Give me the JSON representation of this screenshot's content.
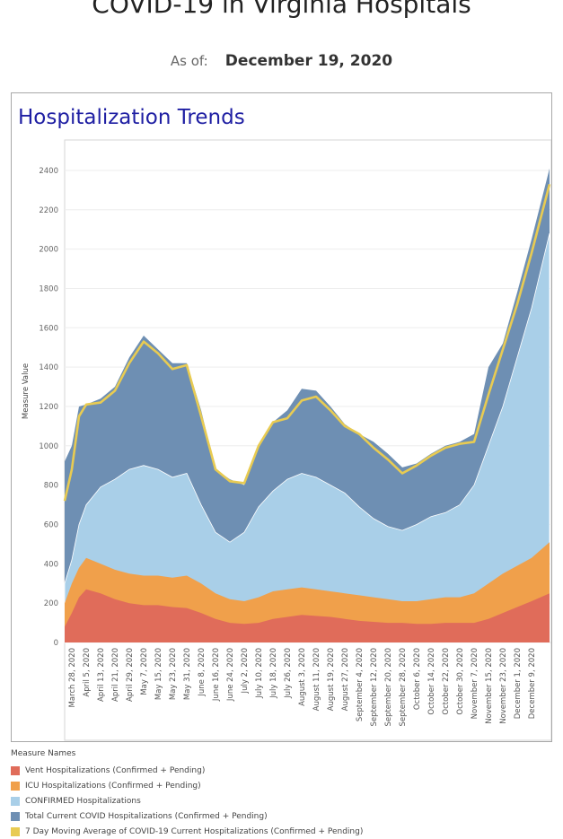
{
  "header": {
    "title": "COVID-19 in Virginia Hospitals",
    "as_of_label": "As of:",
    "as_of_date": "December 19, 2020"
  },
  "panel": {
    "title": "Hospitalization Trends"
  },
  "legend": {
    "title": "Measure Names",
    "items": [
      {
        "label": "Vent Hospitalizations (Confirmed + Pending)",
        "color": "#e06c5a"
      },
      {
        "label": "ICU Hospitalizations (Confirmed + Pending)",
        "color": "#f0a04b"
      },
      {
        "label": "CONFIRMED Hospitalizations",
        "color": "#a9cfe8"
      },
      {
        "label": "Total Current COVID Hospitalizations (Confirmed + Pending)",
        "color": "#6e8fb3"
      },
      {
        "label": "7 Day Moving Average of COVID-19 Current Hospitalizations (Confirmed + Pending)",
        "color": "#e8cb52"
      }
    ]
  },
  "chart_data": {
    "type": "area",
    "ylabel": "Measure Value",
    "ylim": [
      0,
      2500
    ],
    "yticks": [
      0,
      200,
      400,
      600,
      800,
      1000,
      1200,
      1400,
      1600,
      1800,
      2000,
      2200,
      2400
    ],
    "x_start": "2020-03-24",
    "x_end": "2020-12-19",
    "xtick_labels": [
      "March 28, 2020",
      "April 5, 2020",
      "April 13, 2020",
      "April 21, 2020",
      "April 29, 2020",
      "May 7, 2020",
      "May 15, 2020",
      "May 23, 2020",
      "May 31, 2020",
      "June 8, 2020",
      "June 16, 2020",
      "June 24, 2020",
      "July 2, 2020",
      "July 10, 2020",
      "July 18, 2020",
      "July 26, 2020",
      "August 3, 2020",
      "August 11, 2020",
      "August 19, 2020",
      "August 27, 2020",
      "September 4, 2020",
      "September 12, 2020",
      "September 20, 2020",
      "September 28, 2020",
      "October 6, 2020",
      "October 14, 2020",
      "October 22, 2020",
      "October 30, 2020",
      "November 7, 2020",
      "November 15, 2020",
      "November 23, 2020",
      "December 1, 2020",
      "December 9, 2020"
    ],
    "grid": true,
    "series": [
      {
        "name": "Total Current COVID Hospitalizations (Confirmed + Pending)",
        "color": "#6e8fb3",
        "points": [
          [
            "2020-03-24",
            920
          ],
          [
            "2020-03-28",
            1000
          ],
          [
            "2020-04-01",
            1200
          ],
          [
            "2020-04-05",
            1210
          ],
          [
            "2020-04-13",
            1240
          ],
          [
            "2020-04-21",
            1300
          ],
          [
            "2020-04-29",
            1450
          ],
          [
            "2020-05-07",
            1560
          ],
          [
            "2020-05-15",
            1490
          ],
          [
            "2020-05-23",
            1420
          ],
          [
            "2020-05-31",
            1420
          ],
          [
            "2020-06-08",
            1180
          ],
          [
            "2020-06-16",
            880
          ],
          [
            "2020-06-24",
            830
          ],
          [
            "2020-07-02",
            800
          ],
          [
            "2020-07-10",
            1000
          ],
          [
            "2020-07-18",
            1120
          ],
          [
            "2020-07-26",
            1180
          ],
          [
            "2020-08-03",
            1290
          ],
          [
            "2020-08-11",
            1280
          ],
          [
            "2020-08-19",
            1200
          ],
          [
            "2020-08-27",
            1110
          ],
          [
            "2020-09-04",
            1060
          ],
          [
            "2020-09-12",
            1020
          ],
          [
            "2020-09-20",
            960
          ],
          [
            "2020-09-28",
            890
          ],
          [
            "2020-10-06",
            910
          ],
          [
            "2020-10-14",
            960
          ],
          [
            "2020-10-22",
            1000
          ],
          [
            "2020-10-30",
            1020
          ],
          [
            "2020-11-07",
            1060
          ],
          [
            "2020-11-15",
            1400
          ],
          [
            "2020-11-23",
            1520
          ],
          [
            "2020-12-01",
            1780
          ],
          [
            "2020-12-09",
            2050
          ],
          [
            "2020-12-19",
            2410
          ]
        ]
      },
      {
        "name": "CONFIRMED Hospitalizations",
        "color": "#a9cfe8",
        "points": [
          [
            "2020-03-24",
            300
          ],
          [
            "2020-03-28",
            420
          ],
          [
            "2020-04-01",
            600
          ],
          [
            "2020-04-05",
            700
          ],
          [
            "2020-04-13",
            790
          ],
          [
            "2020-04-21",
            830
          ],
          [
            "2020-04-29",
            880
          ],
          [
            "2020-05-07",
            900
          ],
          [
            "2020-05-15",
            880
          ],
          [
            "2020-05-23",
            840
          ],
          [
            "2020-05-31",
            860
          ],
          [
            "2020-06-08",
            700
          ],
          [
            "2020-06-16",
            560
          ],
          [
            "2020-06-24",
            510
          ],
          [
            "2020-07-02",
            560
          ],
          [
            "2020-07-10",
            690
          ],
          [
            "2020-07-18",
            770
          ],
          [
            "2020-07-26",
            830
          ],
          [
            "2020-08-03",
            860
          ],
          [
            "2020-08-11",
            840
          ],
          [
            "2020-08-19",
            800
          ],
          [
            "2020-08-27",
            760
          ],
          [
            "2020-09-04",
            690
          ],
          [
            "2020-09-12",
            630
          ],
          [
            "2020-09-20",
            590
          ],
          [
            "2020-09-28",
            570
          ],
          [
            "2020-10-06",
            600
          ],
          [
            "2020-10-14",
            640
          ],
          [
            "2020-10-22",
            660
          ],
          [
            "2020-10-30",
            700
          ],
          [
            "2020-11-07",
            800
          ],
          [
            "2020-11-15",
            1000
          ],
          [
            "2020-11-23",
            1200
          ],
          [
            "2020-12-01",
            1450
          ],
          [
            "2020-12-09",
            1700
          ],
          [
            "2020-12-19",
            2080
          ]
        ]
      },
      {
        "name": "ICU Hospitalizations (Confirmed + Pending)",
        "color": "#f0a04b",
        "points": [
          [
            "2020-03-24",
            200
          ],
          [
            "2020-03-28",
            300
          ],
          [
            "2020-04-01",
            380
          ],
          [
            "2020-04-05",
            430
          ],
          [
            "2020-04-13",
            400
          ],
          [
            "2020-04-21",
            370
          ],
          [
            "2020-04-29",
            350
          ],
          [
            "2020-05-07",
            340
          ],
          [
            "2020-05-15",
            340
          ],
          [
            "2020-05-23",
            330
          ],
          [
            "2020-05-31",
            340
          ],
          [
            "2020-06-08",
            300
          ],
          [
            "2020-06-16",
            250
          ],
          [
            "2020-06-24",
            220
          ],
          [
            "2020-07-02",
            210
          ],
          [
            "2020-07-10",
            230
          ],
          [
            "2020-07-18",
            260
          ],
          [
            "2020-07-26",
            270
          ],
          [
            "2020-08-03",
            280
          ],
          [
            "2020-08-11",
            270
          ],
          [
            "2020-08-19",
            260
          ],
          [
            "2020-08-27",
            250
          ],
          [
            "2020-09-04",
            240
          ],
          [
            "2020-09-12",
            230
          ],
          [
            "2020-09-20",
            220
          ],
          [
            "2020-09-28",
            210
          ],
          [
            "2020-10-06",
            210
          ],
          [
            "2020-10-14",
            220
          ],
          [
            "2020-10-22",
            230
          ],
          [
            "2020-10-30",
            230
          ],
          [
            "2020-11-07",
            250
          ],
          [
            "2020-11-15",
            300
          ],
          [
            "2020-11-23",
            350
          ],
          [
            "2020-12-01",
            390
          ],
          [
            "2020-12-09",
            430
          ],
          [
            "2020-12-19",
            510
          ]
        ]
      },
      {
        "name": "Vent Hospitalizations (Confirmed + Pending)",
        "color": "#e06c5a",
        "points": [
          [
            "2020-03-24",
            80
          ],
          [
            "2020-03-28",
            150
          ],
          [
            "2020-04-01",
            230
          ],
          [
            "2020-04-05",
            270
          ],
          [
            "2020-04-13",
            250
          ],
          [
            "2020-04-21",
            220
          ],
          [
            "2020-04-29",
            200
          ],
          [
            "2020-05-07",
            190
          ],
          [
            "2020-05-15",
            190
          ],
          [
            "2020-05-23",
            180
          ],
          [
            "2020-05-31",
            175
          ],
          [
            "2020-06-08",
            150
          ],
          [
            "2020-06-16",
            120
          ],
          [
            "2020-06-24",
            100
          ],
          [
            "2020-07-02",
            95
          ],
          [
            "2020-07-10",
            100
          ],
          [
            "2020-07-18",
            120
          ],
          [
            "2020-07-26",
            130
          ],
          [
            "2020-08-03",
            140
          ],
          [
            "2020-08-11",
            135
          ],
          [
            "2020-08-19",
            130
          ],
          [
            "2020-08-27",
            120
          ],
          [
            "2020-09-04",
            110
          ],
          [
            "2020-09-12",
            105
          ],
          [
            "2020-09-20",
            100
          ],
          [
            "2020-09-28",
            100
          ],
          [
            "2020-10-06",
            95
          ],
          [
            "2020-10-14",
            95
          ],
          [
            "2020-10-22",
            100
          ],
          [
            "2020-10-30",
            100
          ],
          [
            "2020-11-07",
            100
          ],
          [
            "2020-11-15",
            120
          ],
          [
            "2020-11-23",
            150
          ],
          [
            "2020-12-01",
            180
          ],
          [
            "2020-12-09",
            210
          ],
          [
            "2020-12-19",
            250
          ]
        ]
      },
      {
        "name": "7 Day Moving Average of COVID-19 Current Hospitalizations (Confirmed + Pending)",
        "color": "#e8cb52",
        "points": [
          [
            "2020-03-24",
            720
          ],
          [
            "2020-03-28",
            880
          ],
          [
            "2020-04-01",
            1150
          ],
          [
            "2020-04-05",
            1210
          ],
          [
            "2020-04-13",
            1220
          ],
          [
            "2020-04-21",
            1280
          ],
          [
            "2020-04-29",
            1420
          ],
          [
            "2020-05-07",
            1530
          ],
          [
            "2020-05-15",
            1470
          ],
          [
            "2020-05-23",
            1390
          ],
          [
            "2020-05-31",
            1410
          ],
          [
            "2020-06-08",
            1150
          ],
          [
            "2020-06-16",
            880
          ],
          [
            "2020-06-24",
            820
          ],
          [
            "2020-07-02",
            810
          ],
          [
            "2020-07-10",
            1000
          ],
          [
            "2020-07-18",
            1120
          ],
          [
            "2020-07-26",
            1140
          ],
          [
            "2020-08-03",
            1230
          ],
          [
            "2020-08-11",
            1250
          ],
          [
            "2020-08-19",
            1180
          ],
          [
            "2020-08-27",
            1100
          ],
          [
            "2020-09-04",
            1060
          ],
          [
            "2020-09-12",
            990
          ],
          [
            "2020-09-20",
            930
          ],
          [
            "2020-09-28",
            860
          ],
          [
            "2020-10-06",
            900
          ],
          [
            "2020-10-14",
            950
          ],
          [
            "2020-10-22",
            990
          ],
          [
            "2020-10-30",
            1010
          ],
          [
            "2020-11-07",
            1020
          ],
          [
            "2020-11-15",
            1260
          ],
          [
            "2020-11-23",
            1490
          ],
          [
            "2020-12-01",
            1720
          ],
          [
            "2020-12-09",
            1980
          ],
          [
            "2020-12-19",
            2330
          ]
        ]
      }
    ]
  }
}
